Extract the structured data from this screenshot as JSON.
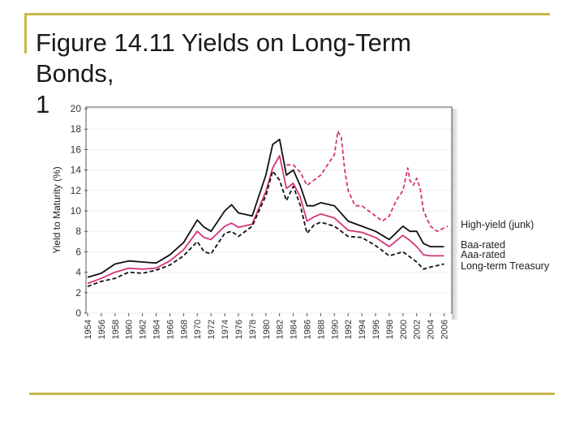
{
  "slide": {
    "title_line1": "Figure 14.11 Yields on Long-Term",
    "title_line2": "Bonds,",
    "title_line3": "1"
  },
  "chart_data": {
    "type": "line",
    "title": "",
    "xlabel": "",
    "ylabel": "Yield to Maturity (%)",
    "xlim": [
      1954,
      2007
    ],
    "ylim": [
      0,
      20
    ],
    "yticks": [
      0,
      2,
      4,
      6,
      8,
      10,
      12,
      14,
      16,
      18,
      20
    ],
    "xticks": [
      1954,
      1956,
      1958,
      1960,
      1962,
      1964,
      1966,
      1968,
      1970,
      1972,
      1974,
      1976,
      1978,
      1980,
      1982,
      1984,
      1986,
      1988,
      1990,
      1992,
      1994,
      1996,
      1998,
      2000,
      2002,
      2004,
      2006
    ],
    "legend": [
      "High-yield (junk)",
      "Baa-rated",
      "Aaa-rated",
      "Long-term Treasury"
    ],
    "colors": {
      "High-yield (junk)": "#d6337a",
      "Baa-rated": "#111111",
      "Aaa-rated": "#d6337a",
      "Long-term Treasury": "#111111"
    },
    "series": [
      {
        "name": "High-yield (junk)",
        "style": "dashed",
        "x": [
          1983,
          1984,
          1985,
          1986,
          1987,
          1988,
          1989,
          1990,
          1990.5,
          1991,
          1991.5,
          1992,
          1993,
          1994,
          1995,
          1996,
          1997,
          1998,
          1999,
          2000,
          2000.7,
          2001,
          2001.5,
          2002,
          2002.5,
          2003,
          2004,
          2005,
          2006.5
        ],
        "y": [
          14.5,
          14.5,
          13.8,
          12.5,
          13,
          13.5,
          14.5,
          15.5,
          17.8,
          17.2,
          14,
          12,
          10.5,
          10.5,
          10,
          9.5,
          9,
          9.5,
          11,
          12,
          14.2,
          13,
          12.5,
          13.2,
          12.2,
          10,
          8.5,
          8,
          8.5
        ]
      },
      {
        "name": "Baa-rated",
        "style": "solid",
        "x": [
          1954,
          1956,
          1958,
          1960,
          1962,
          1964,
          1966,
          1968,
          1970,
          1971,
          1972,
          1974,
          1975,
          1976,
          1978,
          1980,
          1981,
          1982,
          1983,
          1984,
          1985,
          1986,
          1987,
          1988,
          1990,
          1992,
          1994,
          1996,
          1998,
          2000,
          2001,
          2002,
          2003,
          2004,
          2006
        ],
        "y": [
          3.5,
          3.9,
          4.8,
          5.1,
          5,
          4.9,
          5.7,
          6.9,
          9.1,
          8.4,
          8,
          10,
          10.6,
          9.8,
          9.5,
          13.5,
          16.5,
          17,
          13.5,
          14,
          12.5,
          10.5,
          10.5,
          10.8,
          10.5,
          9,
          8.5,
          8,
          7.2,
          8.5,
          8,
          8,
          6.8,
          6.5,
          6.5
        ]
      },
      {
        "name": "Aaa-rated",
        "style": "solid",
        "x": [
          1954,
          1956,
          1958,
          1960,
          1962,
          1964,
          1966,
          1968,
          1970,
          1971,
          1972,
          1974,
          1975,
          1976,
          1978,
          1980,
          1981,
          1982,
          1983,
          1984,
          1985,
          1986,
          1987,
          1988,
          1990,
          1992,
          1994,
          1996,
          1998,
          2000,
          2001,
          2002,
          2003,
          2004,
          2006
        ],
        "y": [
          2.9,
          3.4,
          4,
          4.4,
          4.3,
          4.4,
          5.1,
          6.2,
          8,
          7.4,
          7.2,
          8.5,
          8.8,
          8.4,
          8.7,
          11.9,
          14.2,
          15.4,
          12.2,
          12.7,
          11.4,
          9,
          9.4,
          9.7,
          9.3,
          8.1,
          7.9,
          7.4,
          6.5,
          7.6,
          7.1,
          6.5,
          5.7,
          5.6,
          5.6
        ]
      },
      {
        "name": "Long-term Treasury",
        "style": "dashed",
        "x": [
          1954,
          1956,
          1958,
          1960,
          1962,
          1964,
          1966,
          1968,
          1970,
          1971,
          1972,
          1974,
          1975,
          1976,
          1978,
          1980,
          1981,
          1982,
          1983,
          1984,
          1985,
          1986,
          1987,
          1988,
          1990,
          1992,
          1994,
          1996,
          1998,
          2000,
          2001,
          2002,
          2003,
          2004,
          2006
        ],
        "y": [
          2.6,
          3.1,
          3.4,
          4,
          3.9,
          4.2,
          4.7,
          5.6,
          7,
          6,
          5.8,
          7.8,
          8,
          7.5,
          8.5,
          11.5,
          13.9,
          13,
          11,
          12.4,
          10.6,
          7.8,
          8.6,
          8.9,
          8.5,
          7.5,
          7.4,
          6.6,
          5.6,
          6,
          5.5,
          5,
          4.3,
          4.5,
          4.8
        ]
      }
    ]
  }
}
